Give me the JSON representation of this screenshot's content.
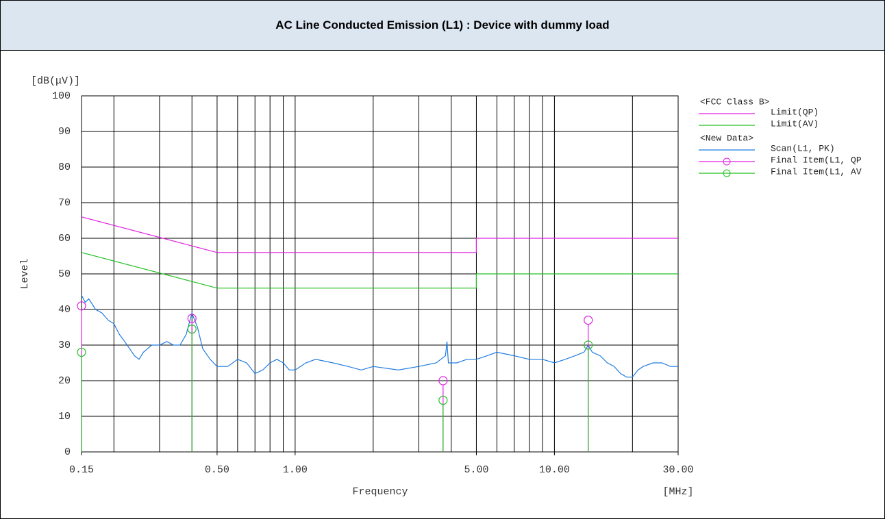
{
  "chart_data": {
    "type": "line",
    "title": "AC Line Conducted Emission (L1) : Device with dummy load",
    "y_unit": "[dB(μV)]",
    "ylabel": "Level",
    "xlabel": "Frequency",
    "x_unit": "[MHz]",
    "log_x": true,
    "grid": true,
    "xlim": [
      0.15,
      30
    ],
    "ylim": [
      0,
      100
    ],
    "yticks": [
      0,
      10,
      20,
      30,
      40,
      50,
      60,
      70,
      80,
      90,
      100
    ],
    "xticks": [
      {
        "value": 0.15,
        "label": "0.15"
      },
      {
        "value": 0.5,
        "label": "0.50"
      },
      {
        "value": 1,
        "label": "1.00"
      },
      {
        "value": 5,
        "label": "5.00"
      },
      {
        "value": 10,
        "label": "10.00"
      },
      {
        "value": 30,
        "label": "30.00"
      }
    ],
    "xgrid": [
      0.2,
      0.3,
      0.4,
      0.5,
      0.6,
      0.7,
      0.8,
      0.9,
      1,
      2,
      3,
      4,
      5,
      6,
      7,
      8,
      9,
      10,
      20
    ],
    "legend_groups": [
      "<FCC Class B>",
      "<New Data>"
    ],
    "series": [
      {
        "name": "Limit(QP)",
        "group": 0,
        "style": "line",
        "color": "#e020e0",
        "x": [
          0.15,
          0.5,
          5,
          5,
          30
        ],
        "values": [
          66,
          56,
          56,
          60,
          60
        ]
      },
      {
        "name": "Limit(AV)",
        "group": 0,
        "style": "line",
        "color": "#22c022",
        "x": [
          0.15,
          0.5,
          5,
          5,
          30
        ],
        "values": [
          56,
          46,
          46,
          50,
          50
        ]
      },
      {
        "name": "Scan(L1, PK)",
        "group": 1,
        "style": "line",
        "color": "#1e7be0",
        "x": [
          0.15,
          0.155,
          0.16,
          0.17,
          0.18,
          0.19,
          0.2,
          0.21,
          0.22,
          0.23,
          0.24,
          0.25,
          0.26,
          0.28,
          0.3,
          0.32,
          0.34,
          0.36,
          0.38,
          0.4,
          0.42,
          0.44,
          0.47,
          0.5,
          0.55,
          0.6,
          0.65,
          0.7,
          0.75,
          0.8,
          0.85,
          0.9,
          0.95,
          1.0,
          1.1,
          1.2,
          1.4,
          1.6,
          1.8,
          2.0,
          2.5,
          3.0,
          3.5,
          3.8,
          3.85,
          3.9,
          4.2,
          4.6,
          5.0,
          5.5,
          6.0,
          7.0,
          8.0,
          9.0,
          10,
          11,
          12,
          13,
          13.5,
          14,
          15,
          16,
          17,
          18,
          19,
          20,
          21,
          22,
          24,
          26,
          28,
          30
        ],
        "values": [
          44,
          42,
          43,
          40,
          39,
          37,
          36,
          33,
          31,
          29,
          27,
          26,
          28,
          30,
          30,
          31,
          30,
          30,
          33,
          39,
          35,
          29,
          26,
          24,
          24,
          26,
          25,
          22,
          23,
          25,
          26,
          25,
          23,
          23,
          25,
          26,
          25,
          24,
          23,
          24,
          23,
          24,
          25,
          27,
          31,
          25,
          25,
          26,
          26,
          27,
          28,
          27,
          26,
          26,
          25,
          26,
          27,
          28,
          30,
          28,
          27,
          25,
          24,
          22,
          21,
          21,
          23,
          24,
          25,
          25,
          24,
          24
        ]
      },
      {
        "name": "Final Item(L1, QP",
        "group": 1,
        "style": "stem",
        "color": "#e020e0",
        "x": [
          0.15,
          0.4,
          3.72,
          13.5
        ],
        "values": [
          41,
          37.5,
          20,
          37
        ]
      },
      {
        "name": "Final Item(L1, AV",
        "group": 1,
        "style": "stem",
        "color": "#22c022",
        "x": [
          0.15,
          0.4,
          3.72,
          13.5
        ],
        "values": [
          28,
          34.5,
          14.5,
          30
        ]
      }
    ]
  }
}
